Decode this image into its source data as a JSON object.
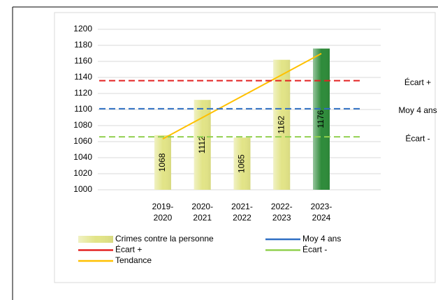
{
  "chart_data": {
    "type": "bar",
    "categories": [
      "2019-2020",
      "2020-2021",
      "2021-2022",
      "2022-2023",
      "2023-2024"
    ],
    "series": [
      {
        "name": "Crimes contre la personne",
        "color": "#e2e487",
        "colors": [
          "#e2e487",
          "#e2e487",
          "#e2e487",
          "#e2e487",
          "#2e8b3a"
        ],
        "values": [
          1068,
          1112,
          1065,
          1162,
          1176
        ]
      },
      {
        "name": "Tendance",
        "type": "line",
        "color": "#ffc000",
        "values": [
          1063.4,
          1090,
          1116.6,
          1143.2,
          1169.8
        ]
      }
    ],
    "reference_lines": [
      {
        "name": "Moy 4 ans",
        "color": "#2f6fc4",
        "value": 1101
      },
      {
        "name": "Écart +",
        "color": "#e32222",
        "value": 1136
      },
      {
        "name": "Écart -",
        "color": "#92d050",
        "value": 1066
      }
    ],
    "ylim": [
      1000,
      1200
    ],
    "yticks": [
      1000,
      1020,
      1040,
      1060,
      1080,
      1100,
      1120,
      1140,
      1160,
      1180,
      1200
    ],
    "grid": true
  }
}
